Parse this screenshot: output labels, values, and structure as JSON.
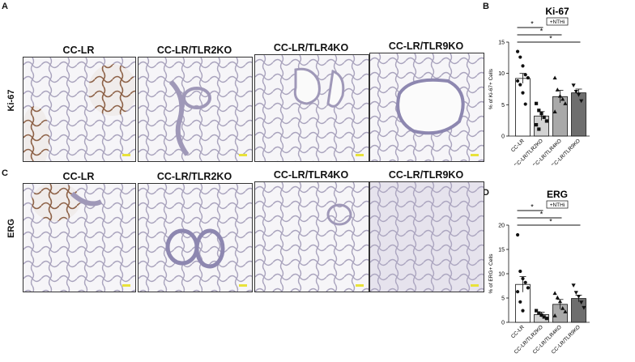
{
  "panels": {
    "A": {
      "letter": "A",
      "row_label": "Ki-67"
    },
    "C": {
      "letter": "C",
      "row_label": "ERG"
    },
    "B": {
      "letter": "B"
    },
    "D": {
      "letter": "D"
    }
  },
  "column_headers": [
    "CC-LR",
    "CC-LR/TLR2KO",
    "CC-LR/TLR4KO",
    "CC-LR/TLR9KO"
  ],
  "colors": {
    "stain_brown": "#8a5a3a",
    "stain_blue": "#8a86b8",
    "tissue": "#d9d3de",
    "scale_bar": "#e8e23a"
  },
  "chart_data": [
    {
      "type": "bar",
      "title": "Ki-67",
      "subtitle": "+NTHi",
      "ylabel": "% of Ki-67+ Cells",
      "ylim": [
        0,
        15
      ],
      "yticks": [
        0,
        5,
        10,
        15
      ],
      "categories": [
        "CC-LR",
        "CC-LR/TLR2KO",
        "CC-LR/TLR4KO",
        "CC-LR/TLR9KO"
      ],
      "values": [
        9.2,
        3.2,
        6.3,
        6.9
      ],
      "errors": [
        0.8,
        0.7,
        1.0,
        0.6
      ],
      "bar_colors": [
        "#ffffff",
        "#d3d3d3",
        "#a9a9a9",
        "#6e6e6e"
      ],
      "markers": [
        "circle",
        "square",
        "triangle-up",
        "triangle-down"
      ],
      "points": [
        [
          13.5,
          12.6,
          11.2,
          9.8,
          9.3,
          8.8,
          8.2,
          6.9,
          5.1
        ],
        [
          5.2,
          4.1,
          3.6,
          3.0,
          2.4,
          1.8,
          1.1
        ],
        [
          9.3,
          7.4,
          6.4,
          5.9,
          5.2,
          3.9
        ],
        [
          8.1,
          7.1,
          6.6,
          5.6
        ]
      ],
      "significance": [
        {
          "from": 0,
          "to": 1,
          "label": "*"
        },
        {
          "from": 0,
          "to": 2,
          "label": "*"
        },
        {
          "from": 0,
          "to": 3,
          "label": "*"
        }
      ]
    },
    {
      "type": "bar",
      "title": "ERG",
      "subtitle": "+NTHi",
      "ylabel": "% of ERG+ Cells",
      "ylim": [
        0,
        20
      ],
      "yticks": [
        0,
        5,
        10,
        15,
        20
      ],
      "categories": [
        "CC-LR",
        "CC-LR/TLR2KO",
        "CC-LR/TLR4KO",
        "CC-LR/TLR9KO"
      ],
      "values": [
        7.8,
        1.6,
        3.7,
        4.9
      ],
      "errors": [
        1.6,
        0.5,
        1.0,
        0.7
      ],
      "bar_colors": [
        "#ffffff",
        "#d3d3d3",
        "#a9a9a9",
        "#6e6e6e"
      ],
      "markers": [
        "circle",
        "square",
        "triangle-up",
        "triangle-down"
      ],
      "points": [
        [
          18.0,
          10.5,
          9.0,
          8.2,
          7.1,
          6.3,
          4.2,
          2.4
        ],
        [
          2.4,
          1.9,
          1.5,
          1.1,
          0.8
        ],
        [
          6.0,
          5.1,
          4.3,
          2.9,
          2.2,
          1.4
        ],
        [
          7.6,
          6.1,
          5.3,
          4.1,
          3.0
        ]
      ],
      "significance": [
        {
          "from": 0,
          "to": 1,
          "label": "*"
        },
        {
          "from": 0,
          "to": 2,
          "label": "*"
        },
        {
          "from": 0,
          "to": 3,
          "label": "*"
        }
      ]
    }
  ]
}
